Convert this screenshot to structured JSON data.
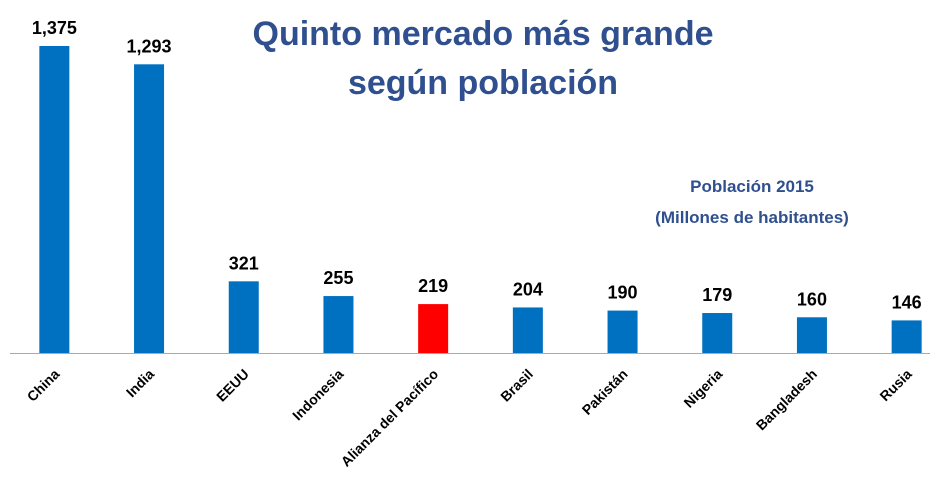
{
  "chart_data": {
    "type": "bar",
    "title": [
      "Quinto mercado más grande",
      "según población"
    ],
    "subtitle": [
      "Población 2015",
      "(Millones de habitantes)"
    ],
    "categories": [
      "China",
      "India",
      "EEUU",
      "Indonesia",
      "Alianza del Pacífico",
      "Brasil",
      "Pakistán",
      "Nigeria",
      "Bangladesh",
      "Rusia"
    ],
    "values": [
      1375,
      1293,
      321,
      255,
      219,
      204,
      190,
      179,
      160,
      146
    ],
    "value_labels": [
      "1,375",
      "1,293",
      "321",
      "255",
      "219",
      "204",
      "190",
      "179",
      "160",
      "146"
    ],
    "colors": [
      "#0070c0",
      "#0070c0",
      "#0070c0",
      "#0070c0",
      "#ff0000",
      "#0070c0",
      "#0070c0",
      "#0070c0",
      "#0070c0",
      "#0070c0"
    ],
    "title_color": "#2f4f8f"
  }
}
